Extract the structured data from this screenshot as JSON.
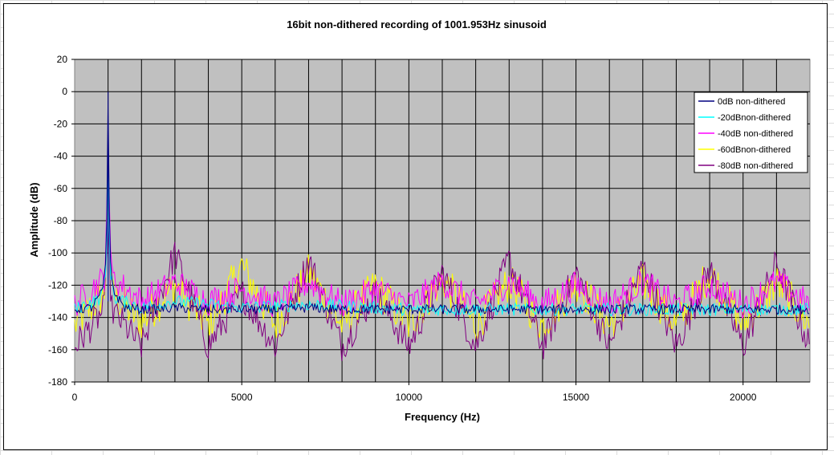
{
  "chart_data": {
    "type": "line",
    "title": "16bit non-dithered recording of 1001.953Hz sinusoid",
    "xlabel": "Frequency (Hz)",
    "ylabel": "Amplitude (dB)",
    "xlim": [
      0,
      22000
    ],
    "ylim": [
      -180,
      20
    ],
    "x_ticks": [
      0,
      5000,
      10000,
      15000,
      20000
    ],
    "y_ticks": [
      20,
      0,
      -20,
      -40,
      -60,
      -80,
      -100,
      -120,
      -140,
      -160,
      -180
    ],
    "grid": true,
    "plot_background": "#c0c0c0",
    "legend_position": "top-right",
    "signal_frequency_hz": 1001.953,
    "series": [
      {
        "name": "0dB non-dithered",
        "color": "#000080",
        "x": [
          0,
          500,
          800,
          900,
          950,
          1001.953,
          1050,
          1100,
          1200,
          1500,
          2000,
          2500,
          3000,
          4000,
          5000,
          6000,
          7000,
          8000,
          10000,
          12000,
          15000,
          18000,
          22000
        ],
        "y": [
          -135,
          -134,
          -125,
          -115,
          -100,
          0,
          -100,
          -115,
          -125,
          -134,
          -135,
          -135,
          -134,
          -135,
          -135,
          -135,
          -134,
          -135,
          -135,
          -135,
          -135,
          -135,
          -135
        ]
      },
      {
        "name": "-20dBnon-dithered",
        "color": "#00ffff",
        "x": [
          0,
          800,
          950,
          1001.953,
          1050,
          1200,
          2000,
          3000,
          5000,
          7000,
          10000,
          15000,
          20000,
          22000
        ],
        "y": [
          -135,
          -128,
          -110,
          -20,
          -110,
          -128,
          -134,
          -130,
          -134,
          -132,
          -135,
          -135,
          -135,
          -135
        ]
      },
      {
        "name": "-40dB non-dithered",
        "color": "#ff00ff",
        "x": [
          0,
          900,
          1001.953,
          1100,
          2000,
          3000,
          4000,
          5000,
          6000,
          7000,
          8000,
          9000,
          10000,
          11000,
          12000,
          13000,
          14000,
          15000,
          16000,
          17000,
          18000,
          19000,
          20000,
          21000,
          22000
        ],
        "y": [
          -132,
          -115,
          -40,
          -115,
          -130,
          -118,
          -130,
          -122,
          -132,
          -118,
          -132,
          -122,
          -132,
          -118,
          -132,
          -118,
          -132,
          -120,
          -132,
          -118,
          -132,
          -120,
          -132,
          -118,
          -132
        ]
      },
      {
        "name": "-60dBnon-dithered",
        "color": "#ffff00",
        "x": [
          0,
          900,
          1001.953,
          1100,
          2000,
          3000,
          4000,
          5000,
          6000,
          7000,
          8000,
          9000,
          10000,
          11000,
          12000,
          13000,
          14000,
          15000,
          16000,
          17000,
          18000,
          19000,
          20000,
          21000,
          22000
        ],
        "y": [
          -145,
          -125,
          -60,
          -125,
          -143,
          -120,
          -145,
          -108,
          -145,
          -112,
          -145,
          -120,
          -145,
          -116,
          -145,
          -118,
          -145,
          -118,
          -145,
          -118,
          -145,
          -112,
          -145,
          -118,
          -145
        ]
      },
      {
        "name": "-80dB non-dithered",
        "color": "#800080",
        "x": [
          0,
          900,
          1001.953,
          1100,
          2000,
          3000,
          4000,
          5000,
          6000,
          7000,
          8000,
          9000,
          10000,
          11000,
          12000,
          13000,
          14000,
          15000,
          16000,
          17000,
          18000,
          19000,
          20000,
          21000,
          22000
        ],
        "y": [
          -158,
          -135,
          -75,
          -135,
          -158,
          -100,
          -158,
          -125,
          -158,
          -104,
          -158,
          -125,
          -158,
          -112,
          -158,
          -104,
          -158,
          -112,
          -158,
          -108,
          -158,
          -110,
          -158,
          -106,
          -158
        ]
      }
    ]
  }
}
